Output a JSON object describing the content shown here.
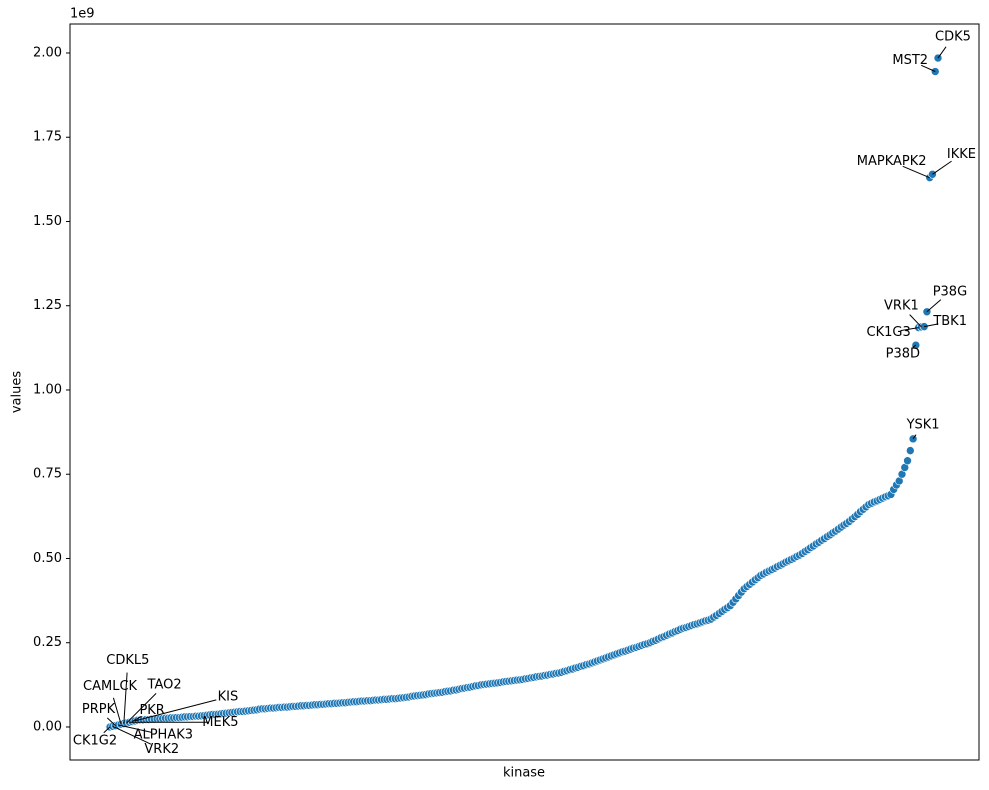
{
  "chart_data": {
    "type": "scatter",
    "x_label": "kinase",
    "y_label": "values",
    "y_offset_label": "1e9",
    "color": "#1f77b4",
    "grid": false,
    "ylim": [
      -0.098,
      2.086
    ],
    "yticks": [
      {
        "value": 0,
        "label": "0.00"
      },
      0.25,
      {
        "value": 0.5,
        "label": "0.50"
      },
      0.75,
      {
        "value": 1,
        "label": "1.00"
      },
      1.25,
      {
        "value": 1.5,
        "label": "1.50"
      },
      1.75,
      {
        "value": 2,
        "label": "2.00"
      }
    ],
    "categories": [
      "CK1G2",
      "VRK2",
      "PRPK",
      "ALPHAK3",
      "CAMLCK",
      "CDKL5",
      "TAO2",
      "MEK5",
      "PKR",
      "KIS",
      null,
      null,
      null,
      null,
      null,
      null,
      null,
      null,
      null,
      null,
      null,
      null,
      null,
      null,
      null,
      null,
      null,
      null,
      null,
      null,
      null,
      null,
      null,
      null,
      null,
      null,
      null,
      null,
      null,
      null,
      null,
      null,
      null,
      null,
      null,
      null,
      null,
      null,
      null,
      null,
      null,
      null,
      null,
      null,
      null,
      null,
      null,
      null,
      null,
      null,
      null,
      null,
      null,
      null,
      null,
      null,
      null,
      null,
      null,
      null,
      null,
      null,
      null,
      null,
      null,
      null,
      null,
      null,
      null,
      null,
      null,
      null,
      null,
      null,
      null,
      null,
      null,
      null,
      null,
      null,
      null,
      null,
      null,
      null,
      null,
      null,
      null,
      null,
      null,
      null,
      null,
      null,
      null,
      null,
      null,
      null,
      null,
      null,
      null,
      null,
      null,
      null,
      null,
      null,
      null,
      null,
      null,
      null,
      null,
      null,
      null,
      null,
      null,
      null,
      null,
      null,
      null,
      null,
      null,
      null,
      null,
      null,
      null,
      null,
      null,
      null,
      null,
      null,
      null,
      null,
      null,
      null,
      null,
      null,
      null,
      null,
      null,
      null,
      null,
      null,
      null,
      null,
      null,
      null,
      null,
      null,
      null,
      null,
      null,
      null,
      null,
      null,
      null,
      null,
      null,
      null,
      null,
      null,
      null,
      null,
      null,
      null,
      null,
      null,
      null,
      null,
      null,
      null,
      null,
      null,
      null,
      null,
      null,
      null,
      null,
      null,
      null,
      null,
      null,
      null,
      null,
      null,
      null,
      null,
      null,
      null,
      null,
      null,
      null,
      null,
      null,
      null,
      null,
      null,
      null,
      null,
      null,
      null,
      null,
      null,
      null,
      null,
      null,
      null,
      null,
      null,
      null,
      null,
      null,
      null,
      null,
      null,
      null,
      null,
      null,
      null,
      null,
      null,
      null,
      null,
      null,
      null,
      null,
      null,
      null,
      null,
      null,
      null,
      null,
      null,
      null,
      null,
      null,
      null,
      null,
      null,
      null,
      null,
      null,
      null,
      null,
      null,
      null,
      null,
      null,
      null,
      null,
      null,
      null,
      null,
      null,
      null,
      null,
      null,
      null,
      null,
      null,
      null,
      null,
      null,
      null,
      null,
      null,
      null,
      null,
      null,
      null,
      null,
      null,
      null,
      null,
      null,
      null,
      null,
      null,
      null,
      null,
      null,
      null,
      null,
      "YSK1",
      "P38D",
      "CK1G3",
      "VRK1",
      "TBK1",
      "P38G",
      "MAPKAPK2",
      "IKKE",
      "MST2",
      "CDK5"
    ],
    "values": [
      0,
      0.002,
      0.004,
      0.006,
      0.008,
      0.01,
      0.012,
      0.014,
      0.016,
      0.018,
      0.02,
      0.021,
      0.021,
      0.022,
      0.022,
      0.023,
      0.023,
      0.024,
      0.024,
      0.025,
      0.026,
      0.026,
      0.027,
      0.027,
      0.028,
      0.028,
      0.029,
      0.03,
      0.03,
      0.031,
      0.031,
      0.032,
      0.032,
      0.033,
      0.034,
      0.035,
      0.036,
      0.037,
      0.037,
      0.038,
      0.039,
      0.04,
      0.041,
      0.042,
      0.043,
      0.044,
      0.045,
      0.046,
      0.046,
      0.047,
      0.048,
      0.049,
      0.05,
      0.051,
      0.053,
      0.054,
      0.054,
      0.055,
      0.056,
      0.056,
      0.057,
      0.058,
      0.058,
      0.059,
      0.059,
      0.06,
      0.061,
      0.061,
      0.062,
      0.063,
      0.063,
      0.064,
      0.064,
      0.065,
      0.066,
      0.066,
      0.067,
      0.067,
      0.068,
      0.069,
      0.069,
      0.07,
      0.07,
      0.071,
      0.072,
      0.072,
      0.073,
      0.074,
      0.075,
      0.075,
      0.076,
      0.077,
      0.077,
      0.078,
      0.078,
      0.079,
      0.08,
      0.08,
      0.081,
      0.082,
      0.082,
      0.083,
      0.084,
      0.084,
      0.085,
      0.086,
      0.087,
      0.088,
      0.089,
      0.091,
      0.092,
      0.093,
      0.094,
      0.095,
      0.096,
      0.098,
      0.099,
      0.1,
      0.101,
      0.102,
      0.103,
      0.105,
      0.106,
      0.107,
      0.109,
      0.11,
      0.112,
      0.114,
      0.115,
      0.117,
      0.118,
      0.12,
      0.122,
      0.123,
      0.125,
      0.126,
      0.127,
      0.128,
      0.129,
      0.13,
      0.131,
      0.132,
      0.134,
      0.135,
      0.136,
      0.137,
      0.138,
      0.139,
      0.14,
      0.141,
      0.143,
      0.144,
      0.146,
      0.147,
      0.149,
      0.15,
      0.151,
      0.153,
      0.154,
      0.156,
      0.157,
      0.159,
      0.16,
      0.162,
      0.165,
      0.167,
      0.17,
      0.172,
      0.175,
      0.177,
      0.18,
      0.182,
      0.185,
      0.187,
      0.19,
      0.193,
      0.196,
      0.199,
      0.202,
      0.205,
      0.208,
      0.211,
      0.214,
      0.217,
      0.22,
      0.223,
      0.225,
      0.228,
      0.231,
      0.234,
      0.236,
      0.239,
      0.242,
      0.245,
      0.247,
      0.25,
      0.254,
      0.257,
      0.261,
      0.265,
      0.268,
      0.272,
      0.276,
      0.279,
      0.283,
      0.286,
      0.29,
      0.293,
      0.295,
      0.298,
      0.301,
      0.304,
      0.306,
      0.309,
      0.312,
      0.315,
      0.317,
      0.32,
      0.326,
      0.331,
      0.337,
      0.343,
      0.349,
      0.354,
      0.36,
      0.37,
      0.38,
      0.39,
      0.4,
      0.41,
      0.417,
      0.423,
      0.43,
      0.437,
      0.443,
      0.45,
      0.454,
      0.459,
      0.463,
      0.467,
      0.471,
      0.476,
      0.48,
      0.484,
      0.489,
      0.493,
      0.497,
      0.501,
      0.506,
      0.51,
      0.515,
      0.521,
      0.526,
      0.532,
      0.537,
      0.543,
      0.548,
      0.554,
      0.559,
      0.565,
      0.57,
      0.576,
      0.581,
      0.587,
      0.593,
      0.599,
      0.604,
      0.61,
      0.617,
      0.624,
      0.631,
      0.639,
      0.646,
      0.653,
      0.66,
      0.664,
      0.668,
      0.671,
      0.675,
      0.679,
      0.683,
      0.686,
      0.69,
      0.705,
      0.718,
      0.73,
      0.75,
      0.77,
      0.79,
      0.82,
      0.855,
      1.133,
      1.185,
      1.187,
      1.188,
      1.232,
      1.63,
      1.64,
      1.945,
      1.985
    ]
  }
}
